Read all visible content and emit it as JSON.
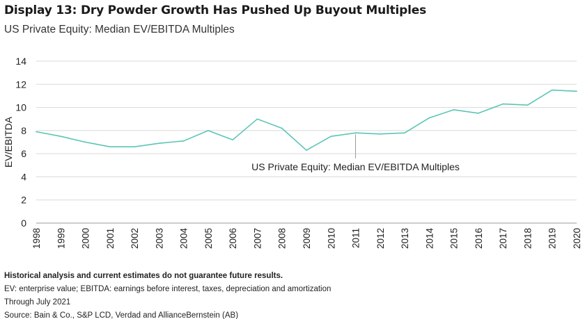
{
  "header": {
    "title": "Display 13: Dry Powder Growth Has Pushed Up Buyout Multiples",
    "subtitle": "US Private Equity: Median EV/EBITDA Multiples"
  },
  "chart_data": {
    "type": "line",
    "ylabel": "EV/EBITDA",
    "xlabel": "",
    "ylim": [
      0,
      14
    ],
    "yticks": [
      0,
      2,
      4,
      6,
      8,
      10,
      12,
      14
    ],
    "grid": true,
    "categories": [
      "1998",
      "1999",
      "2000",
      "2001",
      "2002",
      "2003",
      "2004",
      "2005",
      "2006",
      "2007",
      "2008",
      "2009",
      "2010",
      "2011",
      "2012",
      "2013",
      "2014",
      "2015",
      "2016",
      "2017",
      "2018",
      "2019",
      "2020"
    ],
    "series": [
      {
        "name": "US Private Equity: Median EV/EBITDA Multiples",
        "color": "#5bc5b5",
        "values": [
          7.9,
          7.5,
          7.0,
          6.6,
          6.6,
          6.9,
          7.1,
          8.0,
          7.2,
          9.0,
          8.2,
          6.3,
          7.5,
          7.8,
          7.7,
          7.8,
          9.1,
          9.8,
          9.5,
          10.3,
          10.2,
          11.5,
          11.4
        ]
      }
    ],
    "annotation": {
      "text": "US Private Equity: Median EV/EBITDA Multiples",
      "category": "2011"
    }
  },
  "footer": {
    "disclaimer": "Historical analysis and current estimates do not guarantee future results.",
    "note1": "EV: enterprise value; EBITDA: earnings before interest, taxes, depreciation and amortization",
    "note2": "Through July 2021",
    "source": "Source: Bain & Co., S&P LCD, Verdad and AllianceBernstein (AB)"
  }
}
